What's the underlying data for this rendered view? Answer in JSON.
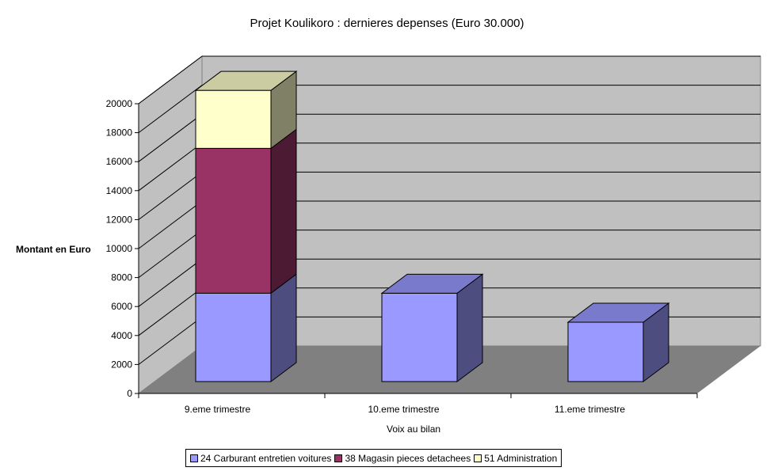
{
  "chart_data": {
    "type": "bar",
    "stacked": true,
    "three_d": true,
    "title": "Projet Koulikoro : dernieres depenses (Euro 30.000)",
    "xlabel": "Voix au bilan",
    "ylabel": "Montant en Euro",
    "categories": [
      "9.eme trimestre",
      "10.eme trimestre",
      "11.eme trimestre"
    ],
    "series": [
      {
        "name": "24 Carburant entretien voitures",
        "values": [
          6100,
          6100,
          4100
        ],
        "color": "#9999ff",
        "side_color": "#4d4d80",
        "top_color": "#7a7acc"
      },
      {
        "name": "38 Magasin pieces detachees",
        "values": [
          10000,
          0,
          0
        ],
        "color": "#993366",
        "side_color": "#4d1a33",
        "top_color": "#7a2952"
      },
      {
        "name": "51 Administration",
        "values": [
          4000,
          0,
          0
        ],
        "color": "#ffffcc",
        "side_color": "#808066",
        "top_color": "#cccca3"
      }
    ],
    "yticks": [
      "0",
      "2000",
      "4000",
      "6000",
      "8000",
      "10000",
      "12000",
      "14000",
      "16000",
      "18000",
      "20000"
    ],
    "ylim": [
      0,
      20000
    ],
    "grid": true,
    "legend_position": "bottom",
    "wall_color": "#c0c0c0",
    "floor_color": "#808080"
  }
}
